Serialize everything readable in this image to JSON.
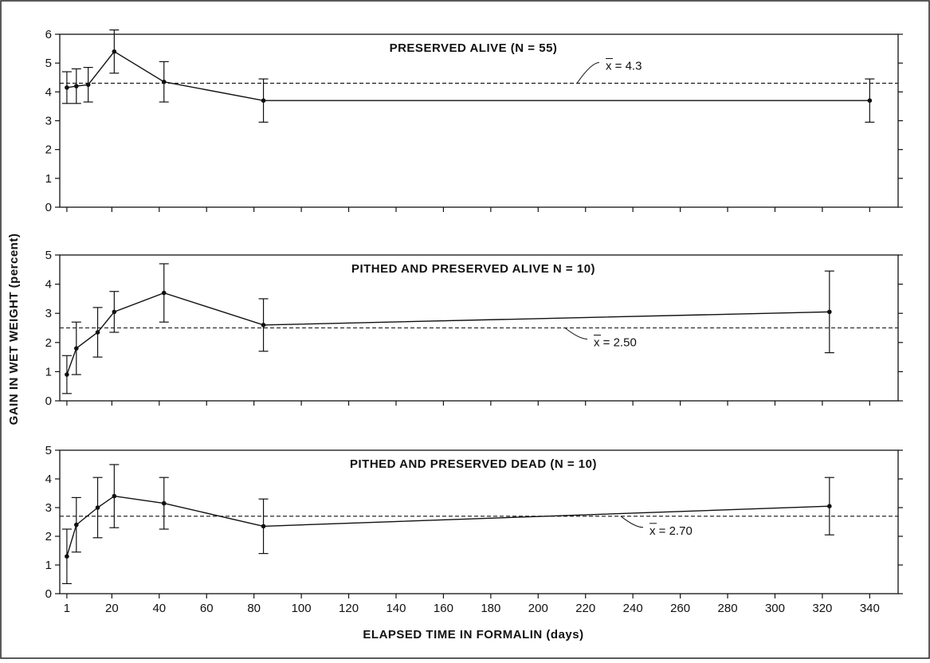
{
  "chart_data": {
    "type": "line",
    "xlabel": "ELAPSED TIME IN FORMALIN (days)",
    "ylabel": "GAIN IN WET WEIGHT (percent)",
    "xlim": [
      -2,
      352
    ],
    "xticks": [
      1,
      20,
      40,
      60,
      80,
      100,
      120,
      140,
      160,
      180,
      200,
      220,
      240,
      260,
      280,
      300,
      320,
      340
    ],
    "grid": false,
    "panels": [
      {
        "title": "PRESERVED ALIVE  (N = 55)",
        "ylim": [
          0,
          6
        ],
        "yticks": [
          0,
          1,
          2,
          3,
          4,
          5,
          6
        ],
        "mean_label": "x = 4.3",
        "mean": 4.3,
        "series": [
          {
            "x": [
              1,
              5,
              10,
              21,
              42,
              84,
              340
            ],
            "y": [
              4.15,
              4.2,
              4.25,
              5.4,
              4.35,
              3.7,
              3.7
            ],
            "yerr": [
              0.55,
              0.6,
              0.6,
              0.75,
              0.7,
              0.75,
              0.75
            ]
          }
        ]
      },
      {
        "title": "PITHED AND PRESERVED ALIVE  N = 10)",
        "ylim": [
          0,
          5
        ],
        "yticks": [
          0,
          1,
          2,
          3,
          4,
          5
        ],
        "mean_label": "x = 2.50",
        "mean": 2.5,
        "series": [
          {
            "x": [
              1,
              5,
              14,
              21,
              42,
              84,
              323
            ],
            "y": [
              0.9,
              1.8,
              2.35,
              3.05,
              3.7,
              2.6,
              3.05
            ],
            "yerr": [
              0.65,
              0.9,
              0.85,
              0.7,
              1.0,
              0.9,
              1.4
            ]
          }
        ]
      },
      {
        "title": "PITHED AND PRESERVED DEAD  (N = 10)",
        "ylim": [
          0,
          5
        ],
        "yticks": [
          0,
          1,
          2,
          3,
          4,
          5
        ],
        "mean_label": "x = 2.70",
        "mean": 2.7,
        "series": [
          {
            "x": [
              1,
              5,
              14,
              21,
              42,
              84,
              323
            ],
            "y": [
              1.3,
              2.4,
              3.0,
              3.4,
              3.15,
              2.35,
              3.05
            ],
            "yerr": [
              0.95,
              0.95,
              1.05,
              1.1,
              0.9,
              0.95,
              1.0
            ]
          }
        ]
      }
    ]
  }
}
